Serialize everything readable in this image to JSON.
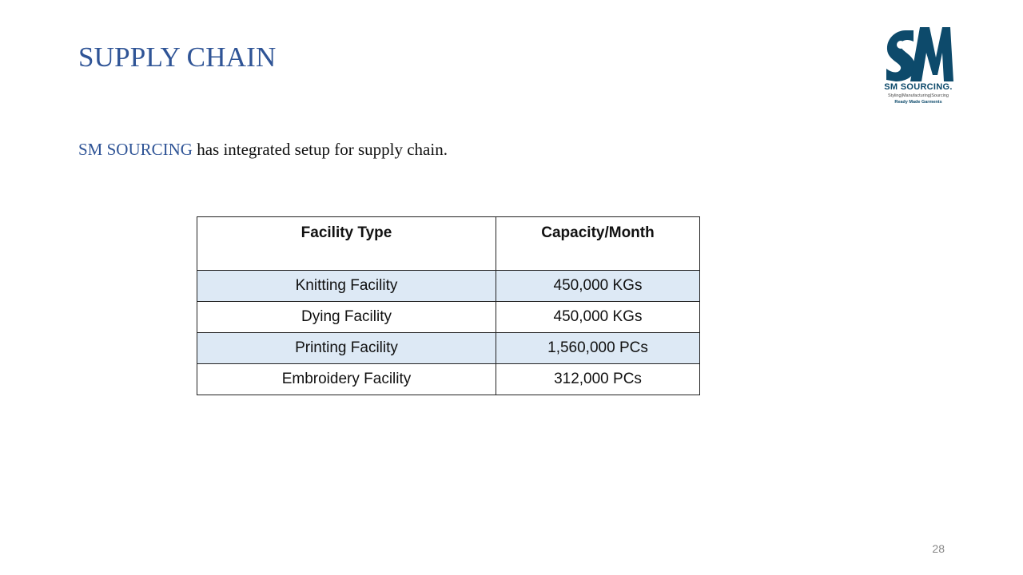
{
  "title": "SUPPLY CHAIN",
  "intro": {
    "brand": "SM SOURCING",
    "text": " has integrated setup for supply chain."
  },
  "logo": {
    "mark": "SM",
    "name": "SM SOURCING.",
    "tagline": "Styling|Manufacturing|Sourcing",
    "subline": "Ready Made Garments",
    "color": "#0d4a6b"
  },
  "table": {
    "headers": [
      "Facility Type",
      "Capacity/Month"
    ],
    "rows": [
      [
        "Knitting Facility",
        "450,000 KGs"
      ],
      [
        "Dying Facility",
        "450,000 KGs"
      ],
      [
        "Printing Facility",
        "1,560,000 PCs"
      ],
      [
        "Embroidery Facility",
        "312,000 PCs"
      ]
    ],
    "shade_color": "#dde9f5"
  },
  "page_number": "28",
  "colors": {
    "title": "#2f5496",
    "text": "#111111"
  }
}
